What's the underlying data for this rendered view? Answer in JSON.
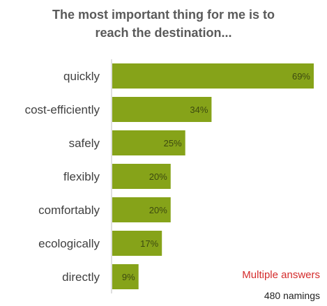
{
  "chart_data": {
    "type": "bar",
    "orientation": "horizontal",
    "title_lines": [
      "The most important thing for me is to",
      "reach the destination..."
    ],
    "categories": [
      "quickly",
      "cost-efficiently",
      "safely",
      "flexibly",
      "comfortably",
      "ecologically",
      "directly"
    ],
    "values": [
      69,
      34,
      25,
      20,
      20,
      17,
      9
    ],
    "value_labels": [
      "69%",
      "34%",
      "25%",
      "20%",
      "20%",
      "17%",
      "9%"
    ],
    "unit": "%",
    "xlim": [
      0,
      69
    ],
    "grid": false,
    "legend": "none",
    "bar_color": "#86a319",
    "label_color": "#3d4a10"
  },
  "notes": {
    "multiple_answers": "Multiple answers",
    "namings": "480 namings"
  }
}
